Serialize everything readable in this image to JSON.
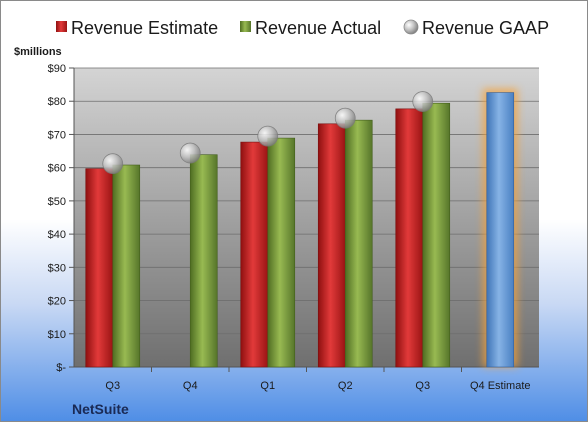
{
  "chart_data": {
    "type": "bar",
    "unit_label": "$millions",
    "company": "NetSuite",
    "categories": [
      "Q3",
      "Q4",
      "Q1",
      "Q2",
      "Q3",
      "Q4 Estimate"
    ],
    "ylim": [
      0,
      90
    ],
    "y_ticks": [
      {
        "value": 0,
        "label": "$-"
      },
      {
        "value": 10,
        "label": "$10"
      },
      {
        "value": 20,
        "label": "$20"
      },
      {
        "value": 30,
        "label": "$30"
      },
      {
        "value": 40,
        "label": "$40"
      },
      {
        "value": 50,
        "label": "$50"
      },
      {
        "value": 60,
        "label": "$60"
      },
      {
        "value": 70,
        "label": "$70"
      },
      {
        "value": 80,
        "label": "$80"
      },
      {
        "value": 90,
        "label": "$90"
      }
    ],
    "grid": true,
    "legend_position": "top",
    "series": [
      {
        "name": "Revenue Estimate",
        "kind": "bar",
        "color": "#d42a2a",
        "values": [
          59.7,
          null,
          67.7,
          73.2,
          77.7,
          null
        ]
      },
      {
        "name": "Revenue Actual",
        "kind": "bar",
        "color": "#86a845",
        "values": [
          60.8,
          63.9,
          68.9,
          74.3,
          79.4,
          null
        ]
      },
      {
        "name": "Revenue GAAP",
        "kind": "marker",
        "color": "#b4b4b4",
        "values": [
          61.2,
          64.4,
          69.5,
          74.9,
          79.9,
          null
        ]
      }
    ],
    "forecast": {
      "category_index": 5,
      "value": 82.6,
      "color": "#6d9fd6",
      "glow_color": "#f5a33a"
    }
  }
}
